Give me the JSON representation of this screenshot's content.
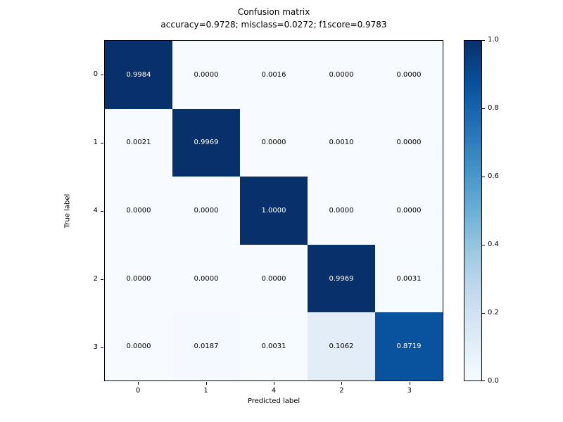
{
  "chart_data": {
    "type": "heatmap",
    "title": "Confusion matrix",
    "subtitle": "accuracy=0.9728; misclass=0.0272; f1score=0.9783",
    "xlabel": "Predicted label",
    "ylabel": "True label",
    "x_tick_labels": [
      "0",
      "1",
      "4",
      "2",
      "3"
    ],
    "y_tick_labels": [
      "0",
      "1",
      "4",
      "2",
      "3"
    ],
    "values": [
      [
        0.9984,
        0.0,
        0.0016,
        0.0,
        0.0
      ],
      [
        0.0021,
        0.9969,
        0.0,
        0.001,
        0.0
      ],
      [
        0.0,
        0.0,
        1.0,
        0.0,
        0.0
      ],
      [
        0.0,
        0.0,
        0.0,
        0.9969,
        0.0031
      ],
      [
        0.0,
        0.0187,
        0.0031,
        0.1062,
        0.8719
      ]
    ],
    "value_decimals": 4,
    "colormap": "Blues",
    "text_threshold": 0.5,
    "text_color_high": "#ffffff",
    "text_color_low": "#000000",
    "colormap_stops": [
      {
        "t": 0.0,
        "color": "#f7fbff"
      },
      {
        "t": 0.125,
        "color": "#deebf7"
      },
      {
        "t": 0.25,
        "color": "#c6dbef"
      },
      {
        "t": 0.375,
        "color": "#9ecae1"
      },
      {
        "t": 0.5,
        "color": "#6baed6"
      },
      {
        "t": 0.625,
        "color": "#4292c6"
      },
      {
        "t": 0.75,
        "color": "#2171b5"
      },
      {
        "t": 0.875,
        "color": "#08519c"
      },
      {
        "t": 1.0,
        "color": "#08306b"
      }
    ],
    "colorbar": {
      "min": 0.0,
      "max": 1.0,
      "tick_values": [
        0.0,
        0.2,
        0.4,
        0.6,
        0.8,
        1.0
      ],
      "tick_labels": [
        "0.0",
        "0.2",
        "0.4",
        "0.6",
        "0.8",
        "1.0"
      ]
    },
    "grid": false,
    "legend": "colorbar-right"
  }
}
